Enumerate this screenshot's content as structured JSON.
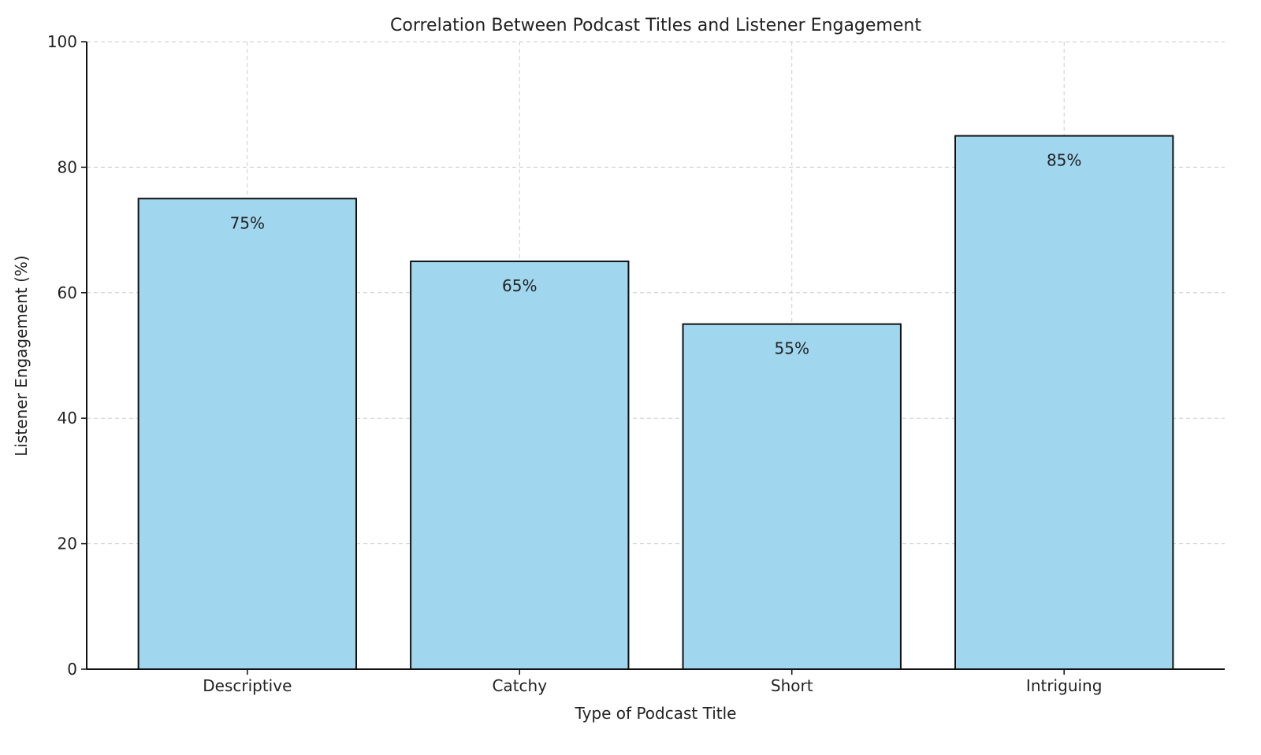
{
  "chart_data": {
    "type": "bar",
    "title": "Correlation Between Podcast Titles and Listener Engagement",
    "xlabel": "Type of Podcast Title",
    "ylabel": "Listener Engagement (%)",
    "categories": [
      "Descriptive",
      "Catchy",
      "Short",
      "Intriguing"
    ],
    "values": [
      75,
      65,
      55,
      85
    ],
    "data_labels": [
      "75%",
      "65%",
      "55%",
      "85%"
    ],
    "ylim": [
      0,
      100
    ],
    "yticks": [
      0,
      20,
      40,
      60,
      80,
      100
    ],
    "grid": true,
    "bar_color": "#a0d6ee",
    "bar_edge_color": "#111111"
  }
}
